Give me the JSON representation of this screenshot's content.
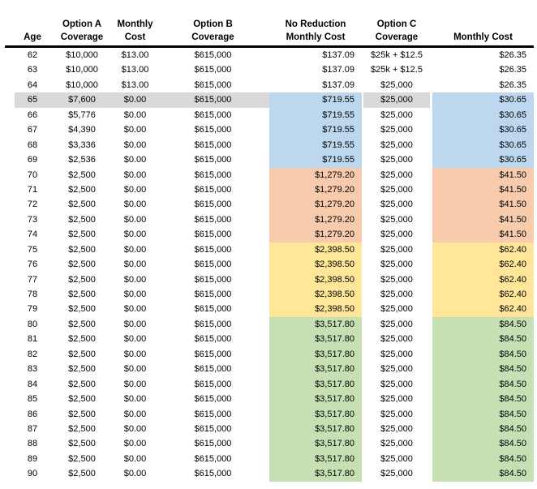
{
  "colors": {
    "band_blue": "#BDD7EE",
    "band_orange": "#F8CBAD",
    "band_yellow": "#FFE699",
    "band_green": "#C6E0B4",
    "row_highlight": "#D9D9D9",
    "header_rule": "#000000"
  },
  "table": {
    "headers": {
      "age": "Age",
      "option_a": [
        "Option A",
        "Coverage"
      ],
      "monthly_a": [
        "Monthly",
        "Cost"
      ],
      "option_b": [
        "Option B",
        "Coverage"
      ],
      "no_reduction": [
        "No Reduction",
        "Monthly Cost"
      ],
      "option_c": [
        "Option C",
        "Coverage"
      ],
      "monthly_c": "Monthly Cost"
    },
    "rows": [
      {
        "age": "62",
        "option_a": "$10,000",
        "monthly_a": "$13.00",
        "option_b": "$615,000",
        "no_reduction": "$137.09",
        "option_c": "$25k + $12.5",
        "monthly_c": "$26.35"
      },
      {
        "age": "63",
        "option_a": "$10,000",
        "monthly_a": "$13.00",
        "option_b": "$615,000",
        "no_reduction": "$137.09",
        "option_c": "$25k + $12.5",
        "monthly_c": "$26.35"
      },
      {
        "age": "64",
        "option_a": "$10,000",
        "monthly_a": "$13.00",
        "option_b": "$615,000",
        "no_reduction": "$137.09",
        "option_c": "$25,000",
        "monthly_c": "$26.35"
      },
      {
        "age": "65",
        "option_a": "$7,600",
        "monthly_a": "$0.00",
        "option_b": "$615,000",
        "no_reduction": "$719.55",
        "option_c": "$25,000",
        "monthly_c": "$30.65",
        "band": "blue",
        "highlight": true
      },
      {
        "age": "66",
        "option_a": "$5,776",
        "monthly_a": "$0.00",
        "option_b": "$615,000",
        "no_reduction": "$719.55",
        "option_c": "$25,000",
        "monthly_c": "$30.65",
        "band": "blue"
      },
      {
        "age": "67",
        "option_a": "$4,390",
        "monthly_a": "$0.00",
        "option_b": "$615,000",
        "no_reduction": "$719.55",
        "option_c": "$25,000",
        "monthly_c": "$30.65",
        "band": "blue"
      },
      {
        "age": "68",
        "option_a": "$3,336",
        "monthly_a": "$0.00",
        "option_b": "$615,000",
        "no_reduction": "$719.55",
        "option_c": "$25,000",
        "monthly_c": "$30.65",
        "band": "blue"
      },
      {
        "age": "69",
        "option_a": "$2,536",
        "monthly_a": "$0.00",
        "option_b": "$615,000",
        "no_reduction": "$719.55",
        "option_c": "$25,000",
        "monthly_c": "$30.65",
        "band": "blue"
      },
      {
        "age": "70",
        "option_a": "$2,500",
        "monthly_a": "$0.00",
        "option_b": "$615,000",
        "no_reduction": "$1,279.20",
        "option_c": "$25,000",
        "monthly_c": "$41.50",
        "band": "orange"
      },
      {
        "age": "71",
        "option_a": "$2,500",
        "monthly_a": "$0.00",
        "option_b": "$615,000",
        "no_reduction": "$1,279.20",
        "option_c": "$25,000",
        "monthly_c": "$41.50",
        "band": "orange"
      },
      {
        "age": "72",
        "option_a": "$2,500",
        "monthly_a": "$0.00",
        "option_b": "$615,000",
        "no_reduction": "$1,279.20",
        "option_c": "$25,000",
        "monthly_c": "$41.50",
        "band": "orange"
      },
      {
        "age": "73",
        "option_a": "$2,500",
        "monthly_a": "$0.00",
        "option_b": "$615,000",
        "no_reduction": "$1,279.20",
        "option_c": "$25,000",
        "monthly_c": "$41.50",
        "band": "orange"
      },
      {
        "age": "74",
        "option_a": "$2,500",
        "monthly_a": "$0.00",
        "option_b": "$615,000",
        "no_reduction": "$1,279.20",
        "option_c": "$25,000",
        "monthly_c": "$41.50",
        "band": "orange"
      },
      {
        "age": "75",
        "option_a": "$2,500",
        "monthly_a": "$0.00",
        "option_b": "$615,000",
        "no_reduction": "$2,398.50",
        "option_c": "$25,000",
        "monthly_c": "$62.40",
        "band": "yellow"
      },
      {
        "age": "76",
        "option_a": "$2,500",
        "monthly_a": "$0.00",
        "option_b": "$615,000",
        "no_reduction": "$2,398.50",
        "option_c": "$25,000",
        "monthly_c": "$62.40",
        "band": "yellow"
      },
      {
        "age": "77",
        "option_a": "$2,500",
        "monthly_a": "$0.00",
        "option_b": "$615,000",
        "no_reduction": "$2,398.50",
        "option_c": "$25,000",
        "monthly_c": "$62.40",
        "band": "yellow"
      },
      {
        "age": "78",
        "option_a": "$2,500",
        "monthly_a": "$0.00",
        "option_b": "$615,000",
        "no_reduction": "$2,398.50",
        "option_c": "$25,000",
        "monthly_c": "$62.40",
        "band": "yellow"
      },
      {
        "age": "79",
        "option_a": "$2,500",
        "monthly_a": "$0.00",
        "option_b": "$615,000",
        "no_reduction": "$2,398.50",
        "option_c": "$25,000",
        "monthly_c": "$62.40",
        "band": "yellow"
      },
      {
        "age": "80",
        "option_a": "$2,500",
        "monthly_a": "$0.00",
        "option_b": "$615,000",
        "no_reduction": "$3,517.80",
        "option_c": "$25,000",
        "monthly_c": "$84.50",
        "band": "green"
      },
      {
        "age": "81",
        "option_a": "$2,500",
        "monthly_a": "$0.00",
        "option_b": "$615,000",
        "no_reduction": "$3,517.80",
        "option_c": "$25,000",
        "monthly_c": "$84.50",
        "band": "green"
      },
      {
        "age": "82",
        "option_a": "$2,500",
        "monthly_a": "$0.00",
        "option_b": "$615,000",
        "no_reduction": "$3,517.80",
        "option_c": "$25,000",
        "monthly_c": "$84.50",
        "band": "green"
      },
      {
        "age": "83",
        "option_a": "$2,500",
        "monthly_a": "$0.00",
        "option_b": "$615,000",
        "no_reduction": "$3,517.80",
        "option_c": "$25,000",
        "monthly_c": "$84.50",
        "band": "green"
      },
      {
        "age": "84",
        "option_a": "$2,500",
        "monthly_a": "$0.00",
        "option_b": "$615,000",
        "no_reduction": "$3,517.80",
        "option_c": "$25,000",
        "monthly_c": "$84.50",
        "band": "green"
      },
      {
        "age": "85",
        "option_a": "$2,500",
        "monthly_a": "$0.00",
        "option_b": "$615,000",
        "no_reduction": "$3,517.80",
        "option_c": "$25,000",
        "monthly_c": "$84.50",
        "band": "green"
      },
      {
        "age": "86",
        "option_a": "$2,500",
        "monthly_a": "$0.00",
        "option_b": "$615,000",
        "no_reduction": "$3,517.80",
        "option_c": "$25,000",
        "monthly_c": "$84.50",
        "band": "green"
      },
      {
        "age": "87",
        "option_a": "$2,500",
        "monthly_a": "$0.00",
        "option_b": "$615,000",
        "no_reduction": "$3,517.80",
        "option_c": "$25,000",
        "monthly_c": "$84.50",
        "band": "green"
      },
      {
        "age": "88",
        "option_a": "$2,500",
        "monthly_a": "$0.00",
        "option_b": "$615,000",
        "no_reduction": "$3,517.80",
        "option_c": "$25,000",
        "monthly_c": "$84.50",
        "band": "green"
      },
      {
        "age": "89",
        "option_a": "$2,500",
        "monthly_a": "$0.00",
        "option_b": "$615,000",
        "no_reduction": "$3,517.80",
        "option_c": "$25,000",
        "monthly_c": "$84.50",
        "band": "green"
      },
      {
        "age": "90",
        "option_a": "$2,500",
        "monthly_a": "$0.00",
        "option_b": "$615,000",
        "no_reduction": "$3,517.80",
        "option_c": "$25,000",
        "monthly_c": "$84.50",
        "band": "green"
      }
    ]
  }
}
